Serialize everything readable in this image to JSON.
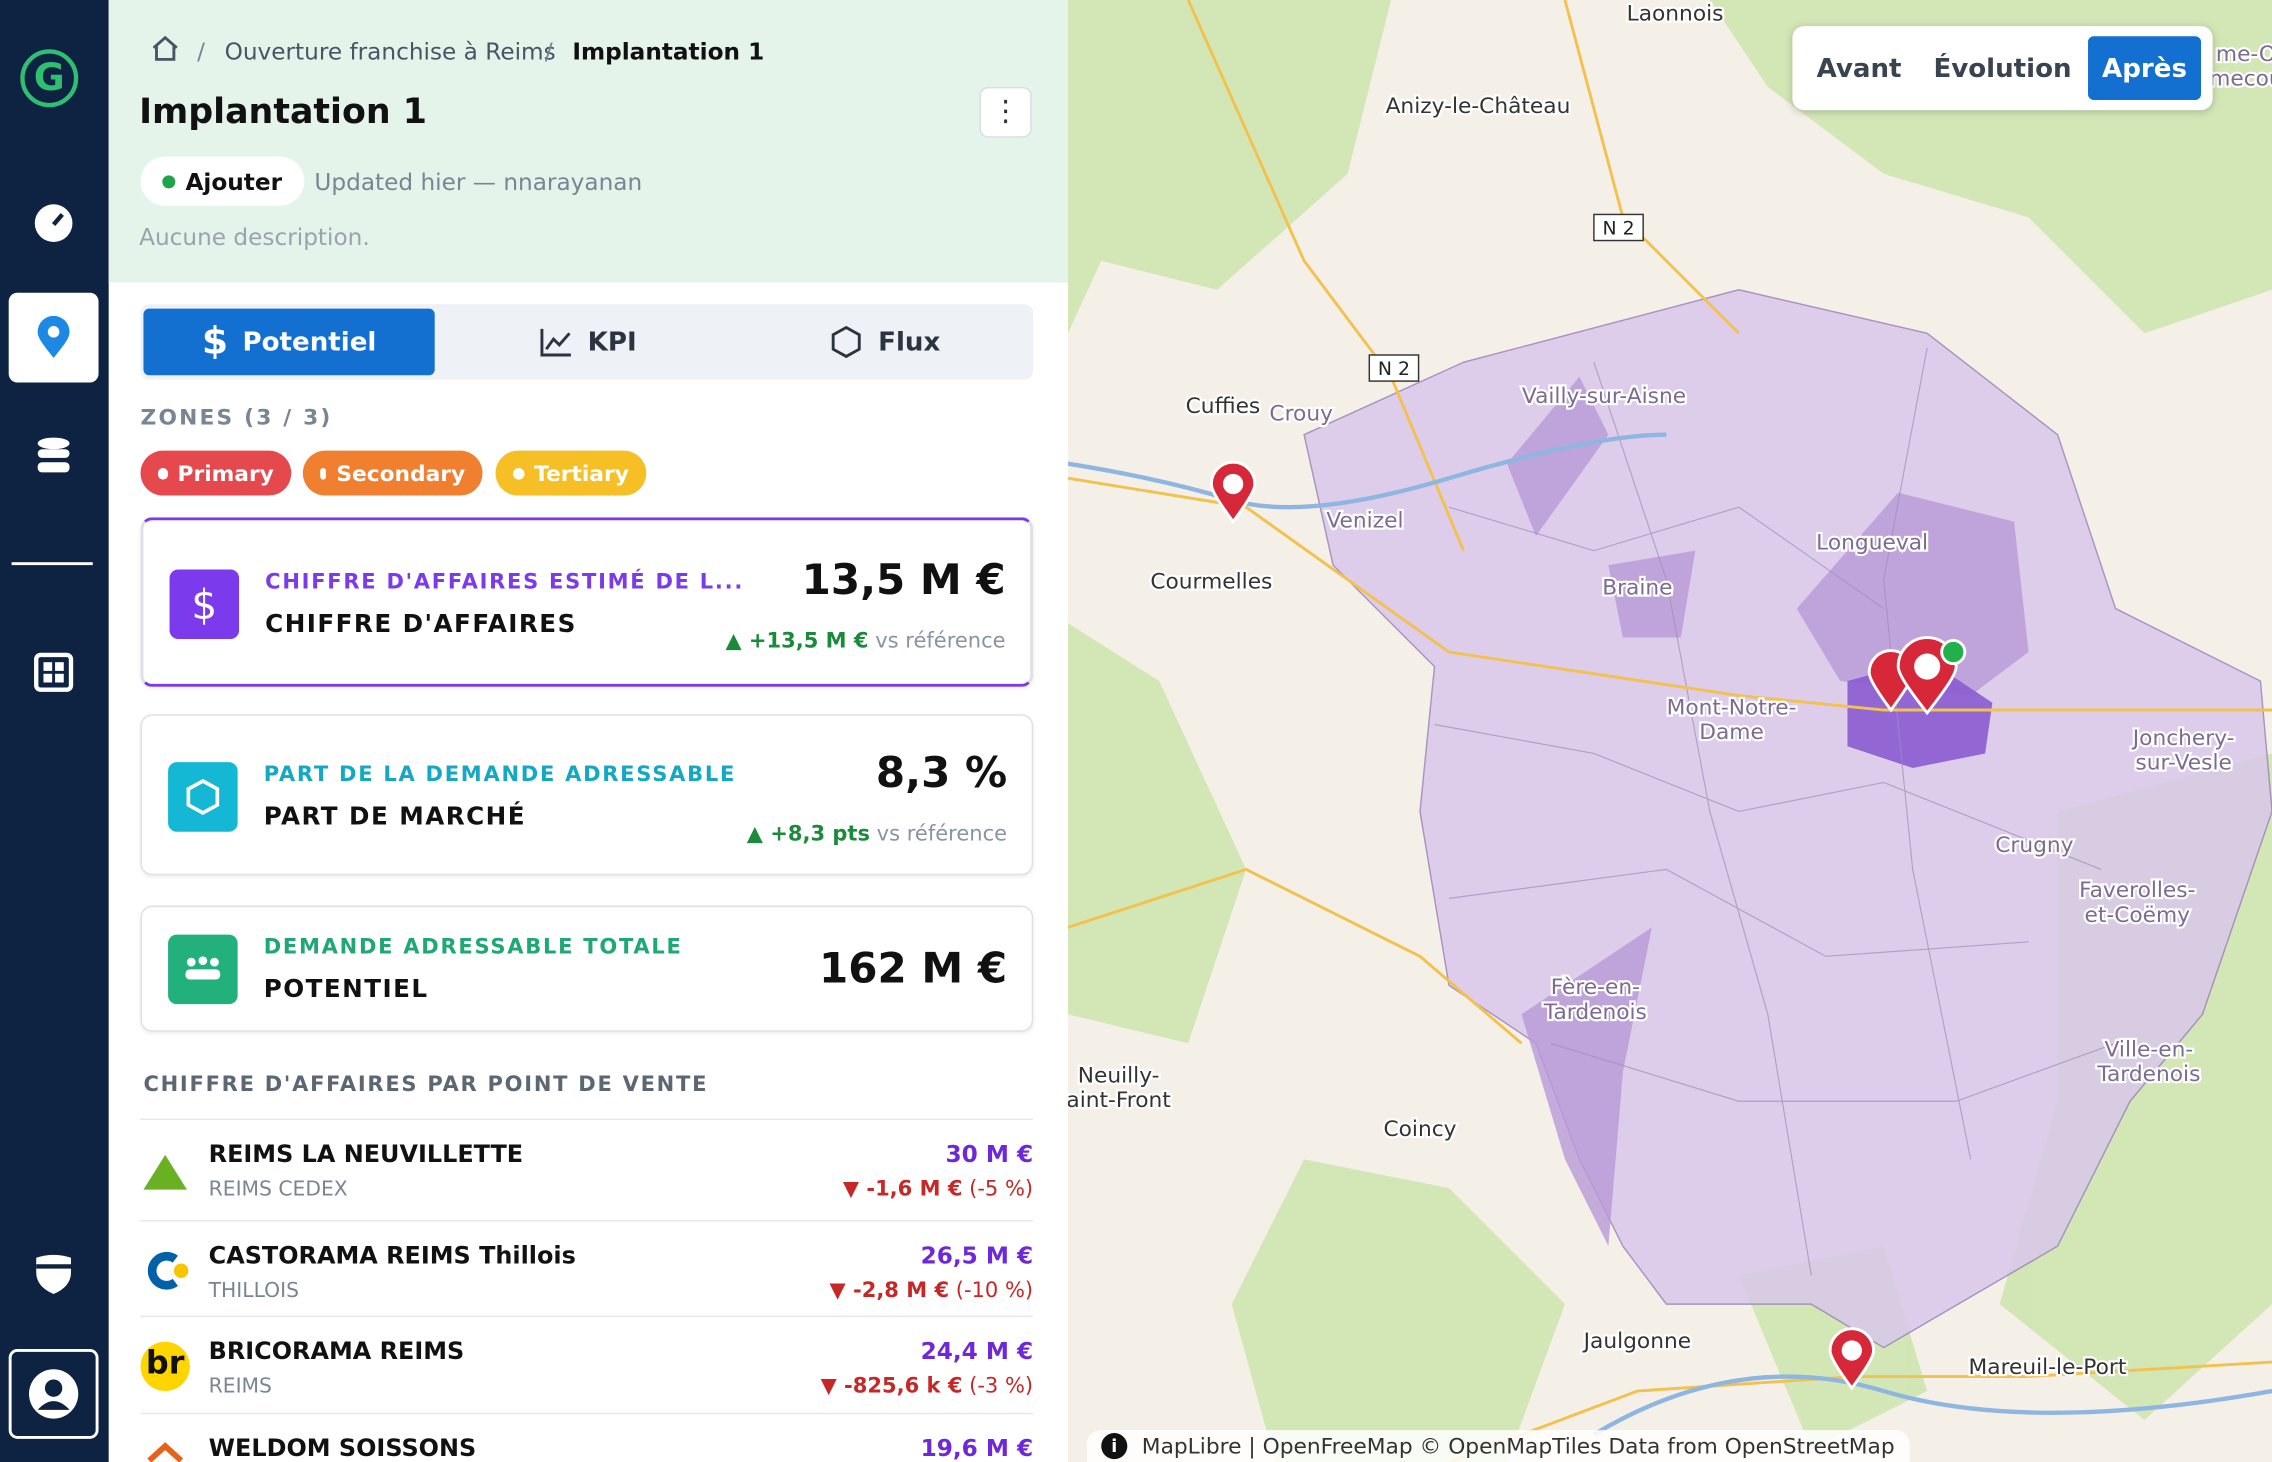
{
  "sidebar": {
    "logo": "G"
  },
  "breadcrumb": [
    "Ouverture franchise à Reims",
    "Implantation 1"
  ],
  "header": {
    "title": "Implantation 1",
    "status": "Ajouter",
    "updated": "Updated hier — nnarayanan",
    "description": "Aucune description."
  },
  "tabs": [
    "Potentiel",
    "KPI",
    "Flux"
  ],
  "zones": {
    "label": "ZONES (3 / 3)",
    "items": [
      "Primary",
      "Secondary",
      "Tertiary"
    ]
  },
  "kpis": [
    {
      "subtitle": "CHIFFRE D'AFFAIRES ESTIMÉ DE L...",
      "title": "CHIFFRE D'AFFAIRES",
      "value": "13,5 M €",
      "delta": "+13,5 M €",
      "note": "vs référence"
    },
    {
      "subtitle": "PART DE LA DEMANDE ADRESSABLE",
      "title": "PART DE MARCHÉ",
      "value": "8,3 %",
      "delta": "+8,3 pts",
      "note": "vs référence"
    },
    {
      "subtitle": "DEMANDE ADRESSABLE TOTALE",
      "title": "POTENTIEL",
      "value": "162 M €"
    }
  ],
  "stores_heading": "CHIFFRE D'AFFAIRES PAR POINT DE VENTE",
  "stores": [
    {
      "name": "REIMS LA NEUVILLETTE",
      "city": "REIMS CEDEX",
      "value": "30 M €",
      "delta": "-1,6 M €",
      "pct": "(-5 %)"
    },
    {
      "name": "CASTORAMA REIMS Thillois",
      "city": "THILLOIS",
      "value": "26,5 M €",
      "delta": "-2,8 M €",
      "pct": "(-10 %)"
    },
    {
      "name": "BRICORAMA REIMS",
      "city": "REIMS",
      "value": "24,4 M €",
      "delta": "-825,6 k €",
      "pct": "(-3 %)",
      "logo_text": "br"
    },
    {
      "name": "WELDOM SOISSONS",
      "value": "19,6 M €"
    }
  ],
  "map": {
    "toggle": [
      "Avant",
      "Évolution",
      "Après"
    ],
    "places": [
      [
        "Laonnois"
      ],
      [
        "Anizy-le-Château"
      ],
      [
        "Cuffies"
      ],
      [
        "Crouy"
      ],
      [
        "Vailly-sur-Aisne"
      ],
      [
        "Venizel"
      ],
      [
        "Courmelles"
      ],
      [
        "Longueval"
      ],
      [
        "Braine"
      ],
      [
        "Mont-Notre-",
        "Dame"
      ],
      [
        "Jonchery-",
        "sur-Vesle"
      ],
      [
        "Crugny"
      ],
      [
        "Faverolles-",
        "et-Coëmy"
      ],
      [
        "Fère-en-",
        "Tardenois"
      ],
      [
        "Neuilly-",
        "aint-Front"
      ],
      [
        "Ville-en-",
        "Tardenois"
      ],
      [
        "Coincy"
      ],
      [
        "Jaulgonne"
      ],
      [
        "Mareuil-le-Port"
      ],
      [
        "me-O",
        "mecou"
      ]
    ],
    "roads": [
      "N 2",
      "N 2"
    ],
    "attribution": "MapLibre | OpenFreeMap © OpenMapTiles Data from OpenStreetMap"
  }
}
